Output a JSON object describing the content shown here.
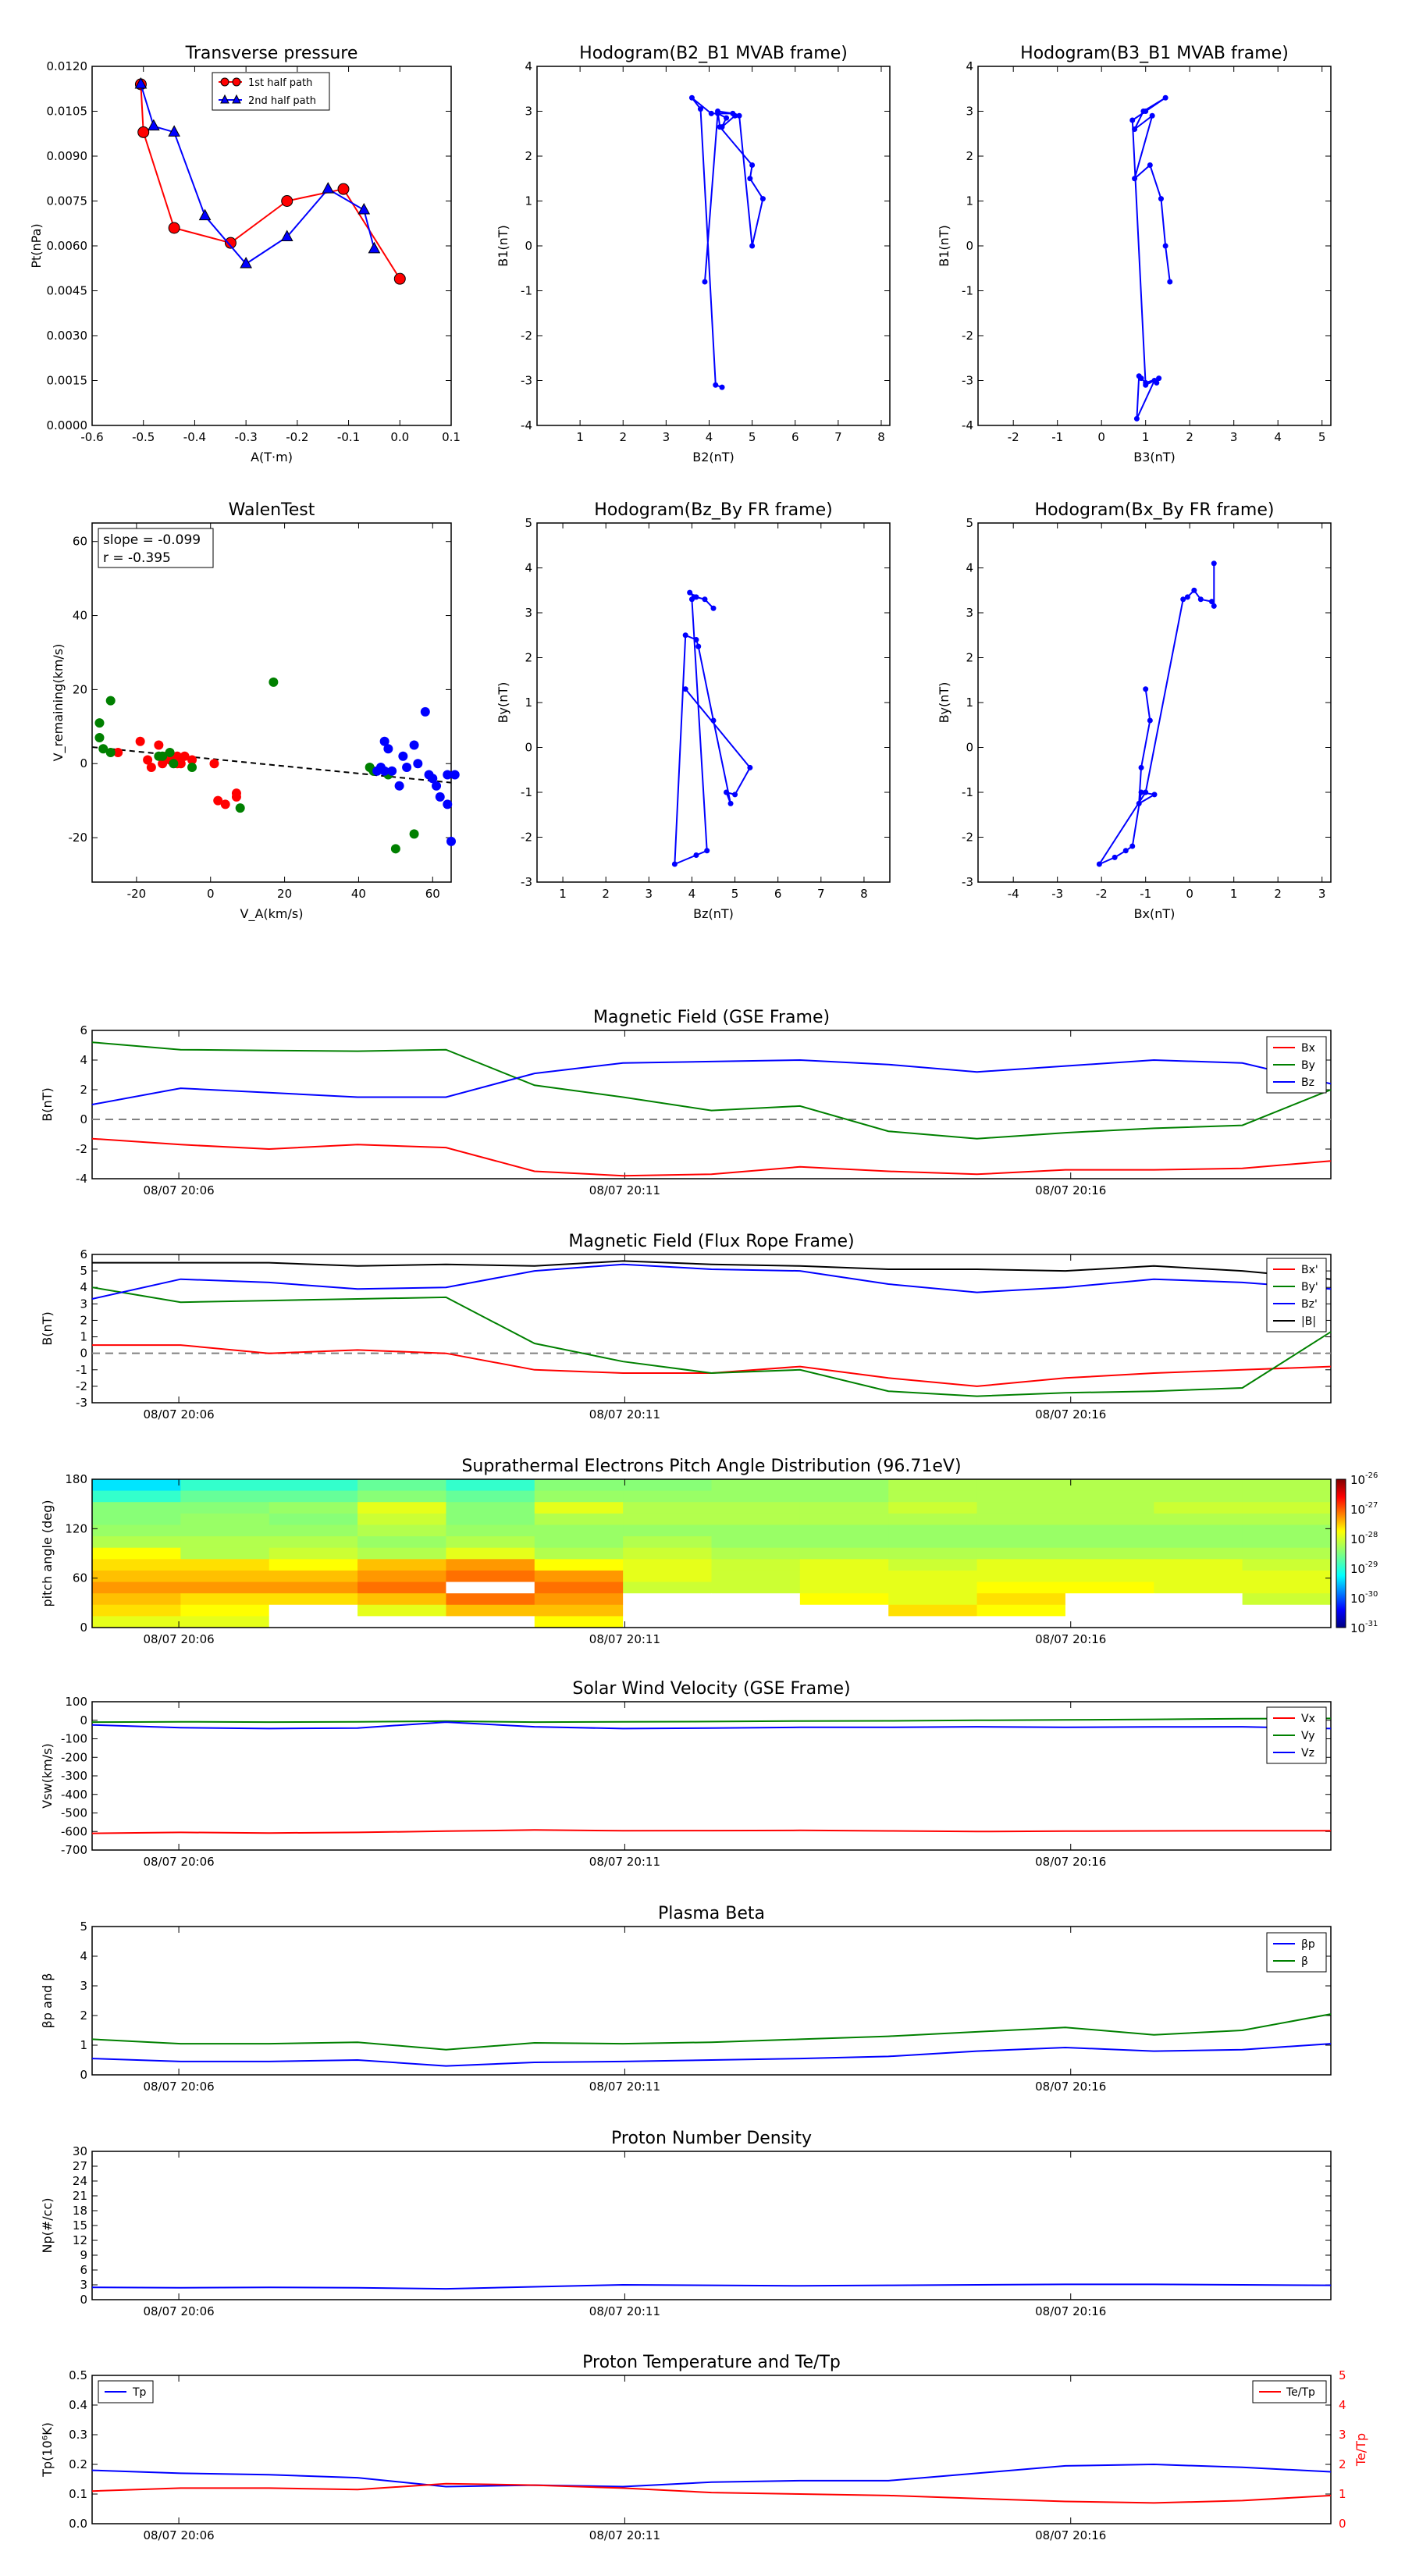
{
  "colors": {
    "red": "#ff0000",
    "green": "#008000",
    "blue": "#0000ff",
    "black": "#000000",
    "grey": "#808080"
  },
  "time_ticks": [
    "08/07 20:06",
    "08/07 20:11",
    "08/07 20:16"
  ],
  "chart_data": [
    {
      "id": "pt",
      "type": "line",
      "title": "Transverse pressure",
      "xlabel": "A(T·m)",
      "ylabel": "Pt(nPa)",
      "xlim": [
        -0.6,
        0.1
      ],
      "ylim": [
        0,
        0.012
      ],
      "xticks": [
        "-0.6",
        "-0.5",
        "-0.4",
        "-0.3",
        "-0.2",
        "-0.1",
        "0.0",
        "0.1"
      ],
      "yticks": [
        "0.0000",
        "0.0015",
        "0.0030",
        "0.0045",
        "0.0060",
        "0.0075",
        "0.0090",
        "0.0105",
        "0.0120"
      ],
      "legend": [
        "1st half path",
        "2nd half path"
      ],
      "series": [
        {
          "name": "1st half path",
          "marker": "circle",
          "x": [
            0.0,
            -0.11,
            -0.22,
            -0.33,
            -0.44,
            -0.5,
            -0.505
          ],
          "y": [
            0.0049,
            0.0079,
            0.0075,
            0.0061,
            0.0066,
            0.0098,
            0.0114
          ]
        },
        {
          "name": "2nd half path",
          "marker": "triangle",
          "x": [
            -0.505,
            -0.48,
            -0.44,
            -0.38,
            -0.3,
            -0.22,
            -0.14,
            -0.07,
            -0.05
          ],
          "y": [
            0.0114,
            0.01,
            0.0098,
            0.007,
            0.0054,
            0.0063,
            0.0079,
            0.0072,
            0.0059
          ]
        }
      ]
    },
    {
      "id": "h21",
      "type": "line",
      "title": "Hodogram(B2_B1 MVAB frame)",
      "xlabel": "B2(nT)",
      "ylabel": "B1(nT)",
      "xlim": [
        0,
        8.2
      ],
      "ylim": [
        -4,
        4
      ],
      "xticks": [
        "1",
        "2",
        "3",
        "4",
        "5",
        "6",
        "7",
        "8"
      ],
      "yticks": [
        "-4",
        "-3",
        "-2",
        "-1",
        "0",
        "1",
        "2",
        "3",
        "4"
      ],
      "x": [
        3.9,
        4.2,
        4.4,
        4.3,
        4.6,
        4.7,
        5.0,
        5.25,
        4.95,
        5.0,
        4.25,
        4.2,
        4.55,
        4.05,
        3.6,
        3.8,
        4.15,
        4.3
      ],
      "y": [
        -0.8,
        2.95,
        2.85,
        2.65,
        2.9,
        2.9,
        0.0,
        1.05,
        1.5,
        1.8,
        2.65,
        3.0,
        2.95,
        2.95,
        3.3,
        3.05,
        -3.1,
        -3.15
      ]
    },
    {
      "id": "h31",
      "type": "line",
      "title": "Hodogram(B3_B1 MVAB frame)",
      "xlabel": "B3(nT)",
      "ylabel": "B1(nT)",
      "xlim": [
        -2.8,
        5.2
      ],
      "ylim": [
        -4,
        4
      ],
      "xticks": [
        "-2",
        "-1",
        "0",
        "1",
        "2",
        "3",
        "4",
        "5"
      ],
      "yticks": [
        "-4",
        "-3",
        "-2",
        "-1",
        "0",
        "1",
        "2",
        "3",
        "4"
      ],
      "x": [
        1.55,
        1.45,
        1.35,
        1.1,
        0.75,
        1.15,
        0.75,
        0.95,
        1.45,
        1.0,
        0.7,
        1.0,
        1.3,
        1.0,
        0.9,
        0.85,
        0.8,
        1.2,
        1.25
      ],
      "y": [
        -0.8,
        0.0,
        1.05,
        1.8,
        1.5,
        2.9,
        2.6,
        3.0,
        3.3,
        3.0,
        2.8,
        -3.1,
        -2.95,
        -3.05,
        -2.95,
        -2.9,
        -3.85,
        -3.0,
        -3.05
      ]
    },
    {
      "id": "walen",
      "type": "scatter",
      "title": "WalenTest",
      "xlabel": "V_A(km/s)",
      "ylabel": "V_remaining(km/s)",
      "xlim": [
        -32,
        65
      ],
      "ylim": [
        -32,
        65
      ],
      "xticks": [
        "-20",
        "0",
        "20",
        "40",
        "60"
      ],
      "yticks": [
        "-20",
        "0",
        "20",
        "40",
        "60"
      ],
      "annotation": [
        "slope = -0.099",
        "r = -0.395"
      ],
      "fit": {
        "slope": -0.099,
        "intercept": 1.3
      },
      "red": {
        "x": [
          -25,
          -19,
          -17,
          -16,
          -14,
          -13,
          -12,
          -11,
          -10,
          -9,
          -9,
          -8,
          -7,
          -5,
          1,
          2,
          4,
          7,
          7
        ],
        "y": [
          3,
          6,
          1,
          -1,
          5,
          0,
          2,
          1,
          1,
          2,
          0,
          0,
          2,
          1,
          0,
          -10,
          -11,
          -9,
          -8
        ]
      },
      "green": {
        "x": [
          -30,
          -30,
          -29,
          -27,
          -27,
          -14,
          -13,
          -11,
          -10,
          -5,
          8,
          17,
          43,
          44,
          48,
          50,
          55
        ],
        "y": [
          11,
          7,
          4,
          3,
          17,
          2,
          2,
          3,
          0,
          -1,
          -12,
          22,
          -1,
          -2,
          -3,
          -23,
          -19
        ]
      },
      "blue": {
        "x": [
          45,
          46,
          47,
          47,
          48,
          49,
          51,
          52,
          53,
          55,
          56,
          58,
          59,
          60,
          61,
          62,
          64,
          64,
          65,
          66
        ],
        "y": [
          -2,
          -1,
          -2,
          6,
          4,
          -2,
          -6,
          2,
          -1,
          5,
          0,
          14,
          -3,
          -4,
          -6,
          -9,
          -3,
          -11,
          -21,
          -3
        ]
      }
    },
    {
      "id": "hzy",
      "type": "line",
      "title": "Hodogram(Bz_By FR frame)",
      "xlabel": "Bz(nT)",
      "ylabel": "By(nT)",
      "xlim": [
        0.4,
        8.6
      ],
      "ylim": [
        -3,
        5
      ],
      "xticks": [
        "1",
        "2",
        "3",
        "4",
        "5",
        "6",
        "7",
        "8"
      ],
      "yticks": [
        "-3",
        "-2",
        "-1",
        "0",
        "1",
        "2",
        "3",
        "4",
        "5"
      ],
      "x": [
        3.85,
        5.35,
        5.0,
        4.8,
        4.9,
        4.5,
        4.15,
        4.1,
        3.85,
        3.6,
        4.1,
        4.35,
        4.0,
        4.05,
        3.95,
        4.1,
        4.3,
        4.5
      ],
      "y": [
        1.3,
        -0.45,
        -1.05,
        -1.0,
        -1.25,
        0.6,
        2.25,
        2.4,
        2.5,
        -2.6,
        -2.4,
        -2.3,
        3.3,
        3.35,
        3.45,
        3.35,
        3.3,
        3.1
      ]
    },
    {
      "id": "hxy",
      "type": "line",
      "title": "Hodogram(Bx_By FR frame)",
      "xlabel": "Bx(nT)",
      "ylabel": "By(nT)",
      "xlim": [
        -4.8,
        3.2
      ],
      "ylim": [
        -3,
        5
      ],
      "xticks": [
        "-4",
        "-3",
        "-2",
        "-1",
        "0",
        "1",
        "2",
        "3"
      ],
      "yticks": [
        "-3",
        "-2",
        "-1",
        "0",
        "1",
        "2",
        "3",
        "4",
        "5"
      ],
      "x": [
        -1.0,
        -0.9,
        -1.1,
        -1.15,
        -0.8,
        -1.1,
        -1.3,
        -1.45,
        -1.7,
        -2.05,
        -1.0,
        -0.15,
        -0.05,
        0.1,
        0.25,
        0.5,
        0.55,
        0.55
      ],
      "y": [
        1.3,
        0.6,
        -0.45,
        -1.25,
        -1.05,
        -1.0,
        -2.2,
        -2.3,
        -2.45,
        -2.6,
        -1.0,
        3.3,
        3.35,
        3.5,
        3.3,
        3.25,
        3.15,
        4.1
      ]
    },
    {
      "id": "bgse",
      "type": "line",
      "title": "Magnetic Field (GSE Frame)",
      "ylabel": "B(nT)",
      "ylim": [
        -4,
        6
      ],
      "yticks": [
        "-4",
        "-2",
        "0",
        "2",
        "4",
        "6"
      ],
      "zero_line": true,
      "series": [
        {
          "name": "Bx",
          "color": "red",
          "values": [
            -1.3,
            -1.7,
            -2.0,
            -1.7,
            -1.9,
            -3.5,
            -3.8,
            -3.7,
            -3.2,
            -3.5,
            -3.7,
            -3.4,
            -3.4,
            -3.3,
            -2.8
          ]
        },
        {
          "name": "By",
          "color": "green",
          "values": [
            5.2,
            4.7,
            4.65,
            4.6,
            4.7,
            2.3,
            1.5,
            0.6,
            0.9,
            -0.8,
            -1.3,
            -0.9,
            -0.6,
            -0.4,
            2.0
          ]
        },
        {
          "name": "Bz",
          "color": "blue",
          "values": [
            1.0,
            2.1,
            1.8,
            1.5,
            1.5,
            3.1,
            3.8,
            3.9,
            4.0,
            3.7,
            3.2,
            3.6,
            4.0,
            3.8,
            2.4
          ]
        }
      ]
    },
    {
      "id": "bfr",
      "type": "line",
      "title": "Magnetic Field (Flux Rope Frame)",
      "ylabel": "B(nT)",
      "ylim": [
        -3,
        6
      ],
      "yticks": [
        "-3",
        "-2",
        "-1",
        "0",
        "1",
        "2",
        "3",
        "4",
        "5",
        "6"
      ],
      "zero_line": true,
      "series": [
        {
          "name": "Bx'",
          "color": "red",
          "values": [
            0.5,
            0.5,
            0.0,
            0.2,
            0.0,
            -1.0,
            -1.2,
            -1.2,
            -0.8,
            -1.5,
            -2.0,
            -1.5,
            -1.2,
            -1.0,
            -0.8
          ]
        },
        {
          "name": "By'",
          "color": "green",
          "values": [
            4.0,
            3.1,
            3.2,
            3.3,
            3.4,
            0.6,
            -0.5,
            -1.2,
            -1.0,
            -2.3,
            -2.6,
            -2.4,
            -2.3,
            -2.1,
            1.3
          ]
        },
        {
          "name": "Bz'",
          "color": "blue",
          "values": [
            3.3,
            4.5,
            4.3,
            3.9,
            4.0,
            5.0,
            5.4,
            5.1,
            5.0,
            4.2,
            3.7,
            4.0,
            4.5,
            4.3,
            3.9
          ]
        },
        {
          "name": "|B|",
          "color": "black",
          "values": [
            5.5,
            5.5,
            5.5,
            5.3,
            5.4,
            5.3,
            5.6,
            5.4,
            5.3,
            5.1,
            5.1,
            5.0,
            5.3,
            5.0,
            4.5
          ]
        }
      ]
    },
    {
      "id": "pad",
      "type": "heatmap",
      "title": "Suprathermal Electrons Pitch Angle Distribution (96.71eV)",
      "ylabel": "pitch angle (deg)",
      "ylim": [
        0,
        180
      ],
      "yticks": [
        "0",
        "60",
        "120",
        "180"
      ],
      "colorbar_ticks": [
        "10",
        "10",
        "10",
        "10",
        "10",
        "10"
      ],
      "colorbar_exps": [
        "-26",
        "-27",
        "-28",
        "-29",
        "-30",
        "-31"
      ],
      "rows": [
        [
          1,
          2,
          2,
          3,
          2,
          4,
          4,
          5,
          5,
          6,
          6,
          6,
          6,
          6
        ],
        [
          2,
          3,
          3,
          4,
          3,
          5,
          5,
          5,
          5,
          6,
          6,
          6,
          6,
          6
        ],
        [
          4,
          4,
          5,
          8,
          4,
          8,
          6,
          6,
          6,
          7,
          6,
          6,
          7,
          7
        ],
        [
          4,
          5,
          4,
          7,
          4,
          6,
          6,
          6,
          6,
          6,
          6,
          6,
          6,
          6
        ],
        [
          5,
          5,
          5,
          6,
          5,
          5,
          5,
          5,
          5,
          5,
          5,
          5,
          5,
          5
        ],
        [
          6,
          6,
          6,
          5,
          6,
          5,
          6,
          5,
          5,
          5,
          5,
          5,
          5,
          5
        ],
        [
          9,
          6,
          7,
          6,
          8,
          6,
          7,
          6,
          6,
          6,
          6,
          6,
          6,
          6
        ],
        [
          10,
          10,
          9,
          11,
          12,
          9,
          8,
          7,
          8,
          7,
          8,
          8,
          8,
          7
        ],
        [
          11,
          11,
          11,
          12,
          13,
          12,
          8,
          7,
          8,
          8,
          8,
          8,
          8,
          8
        ],
        [
          12,
          12,
          12,
          13,
          14,
          13,
          7,
          7,
          8,
          8,
          9,
          9,
          8,
          8
        ],
        [
          11,
          10,
          10,
          11,
          13,
          12,
          0,
          0,
          9,
          8,
          10,
          0,
          0,
          7
        ],
        [
          10,
          9,
          0,
          8,
          11,
          11,
          0,
          0,
          0,
          10,
          9,
          0,
          0,
          0
        ],
        [
          8,
          8,
          0,
          0,
          0,
          9,
          0,
          0,
          0,
          0,
          0,
          0,
          0,
          0
        ]
      ]
    },
    {
      "id": "vsw",
      "type": "line",
      "title": "Solar Wind Velocity (GSE Frame)",
      "ylabel": "Vsw(km/s)",
      "ylim": [
        -700,
        100
      ],
      "yticks": [
        "-700",
        "-600",
        "-500",
        "-400",
        "-300",
        "-200",
        "-100",
        "0",
        "100"
      ],
      "series": [
        {
          "name": "Vx",
          "color": "red",
          "values": [
            -610,
            -605,
            -608,
            -605,
            -598,
            -592,
            -596,
            -595,
            -594,
            -597,
            -600,
            -598,
            -597,
            -596,
            -596
          ]
        },
        {
          "name": "Vy",
          "color": "green",
          "values": [
            -10,
            -8,
            -10,
            -8,
            -5,
            -10,
            -8,
            -7,
            -4,
            -3,
            0,
            2,
            5,
            8,
            10
          ]
        },
        {
          "name": "Vz",
          "color": "blue",
          "values": [
            -25,
            -40,
            -45,
            -42,
            -10,
            -35,
            -45,
            -42,
            -38,
            -38,
            -35,
            -38,
            -36,
            -35,
            -45
          ]
        }
      ]
    },
    {
      "id": "beta",
      "type": "line",
      "title": "Plasma Beta",
      "ylabel": "βp and β",
      "ylim": [
        0,
        5
      ],
      "yticks": [
        "0",
        "1",
        "2",
        "3",
        "4",
        "5"
      ],
      "series": [
        {
          "name": "βp",
          "color": "blue",
          "values": [
            0.55,
            0.45,
            0.45,
            0.5,
            0.3,
            0.42,
            0.45,
            0.5,
            0.55,
            0.62,
            0.8,
            0.92,
            0.8,
            0.85,
            1.05
          ]
        },
        {
          "name": "β",
          "color": "green",
          "values": [
            1.2,
            1.05,
            1.05,
            1.1,
            0.85,
            1.08,
            1.05,
            1.1,
            1.2,
            1.3,
            1.45,
            1.6,
            1.35,
            1.5,
            2.05
          ]
        }
      ]
    },
    {
      "id": "np",
      "type": "line",
      "title": "Proton Number Density",
      "ylabel": "Np(#/cc)",
      "ylim": [
        0,
        30
      ],
      "yticks": [
        "0",
        "3",
        "6",
        "9",
        "12",
        "15",
        "18",
        "21",
        "24",
        "27",
        "30"
      ],
      "series": [
        {
          "name": "Np",
          "color": "blue",
          "values": [
            2.5,
            2.4,
            2.5,
            2.4,
            2.2,
            2.6,
            3.0,
            2.9,
            2.8,
            2.9,
            3.0,
            3.1,
            3.1,
            3.0,
            2.9
          ]
        }
      ]
    },
    {
      "id": "tp",
      "type": "line",
      "title": "Proton Temperature and Te/Tp",
      "ylabel": "Tp(10⁶K)",
      "ylim": [
        0,
        0.5
      ],
      "yticks": [
        "0.0",
        "0.1",
        "0.2",
        "0.3",
        "0.4",
        "0.5"
      ],
      "ylabel_right": "Te/Tp",
      "ylim_right": [
        0,
        5
      ],
      "yticks_right": [
        "0",
        "1",
        "2",
        "3",
        "4",
        "5"
      ],
      "series": [
        {
          "name": "Tp",
          "color": "blue",
          "axis": "left",
          "values": [
            0.18,
            0.17,
            0.165,
            0.155,
            0.125,
            0.13,
            0.125,
            0.14,
            0.145,
            0.145,
            0.17,
            0.195,
            0.2,
            0.19,
            0.175
          ]
        },
        {
          "name": "Te/Tp",
          "color": "red",
          "axis": "right",
          "values": [
            1.1,
            1.2,
            1.2,
            1.15,
            1.35,
            1.3,
            1.2,
            1.05,
            1.0,
            0.95,
            0.85,
            0.75,
            0.7,
            0.78,
            0.95
          ]
        }
      ]
    }
  ]
}
